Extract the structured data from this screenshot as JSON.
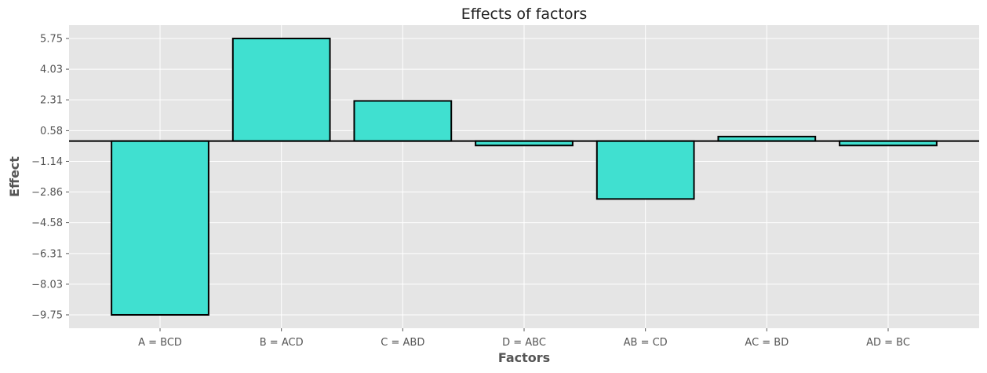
{
  "chart_data": {
    "type": "bar",
    "title": "Effects of factors",
    "xlabel": "Factors",
    "ylabel": "Effect",
    "categories": [
      "A = BCD",
      "B = ACD",
      "C = ABD",
      "D = ABC",
      "AB = CD",
      "AC = BD",
      "AD = BC"
    ],
    "values": [
      -9.75,
      5.75,
      2.25,
      -0.25,
      -3.25,
      0.25,
      -0.25
    ],
    "yticks": [
      5.75,
      4.03,
      2.31,
      0.58,
      -1.14,
      -2.86,
      -4.58,
      -6.31,
      -8.03,
      -9.75
    ],
    "ytick_labels": [
      "5.75",
      "4.03",
      "2.31",
      "0.58",
      "−1.14",
      "−2.86",
      "−4.58",
      "−6.31",
      "−8.03",
      "−9.75"
    ],
    "ylim": [
      -10.5,
      6.5
    ],
    "grid": true,
    "bar_color": "#40e0d0",
    "bar_edge_color": "#000000",
    "background_color": "#e5e5e5",
    "grid_color": "#ffffff",
    "zero_line_color": "#000000"
  }
}
